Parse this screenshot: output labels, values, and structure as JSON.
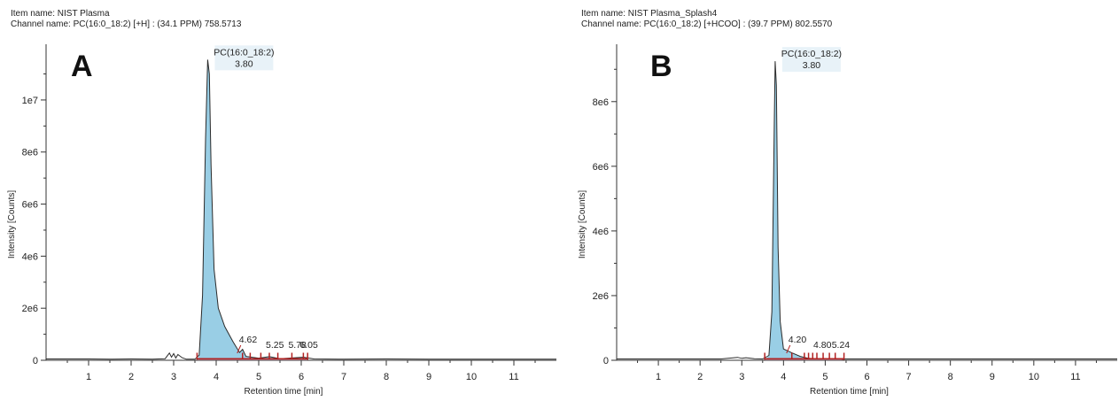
{
  "chart_data": [
    {
      "panel": "A",
      "type": "line",
      "item_name": "Item name: NIST Plasma",
      "channel_name": "Channel name: PC(16:0_18:2) [+H] : (34.1 PPM) 758.5713",
      "xlabel": "Retention time [min]",
      "ylabel": "Intensity [Counts]",
      "xlim": [
        0,
        12
      ],
      "ylim": [
        0,
        11800000
      ],
      "x_ticks": [
        1,
        2,
        3,
        4,
        5,
        6,
        7,
        8,
        9,
        10,
        11
      ],
      "y_ticks": [
        0,
        2000000,
        4000000,
        6000000,
        8000000,
        10000000
      ],
      "y_tick_labels": [
        "0",
        "2e6",
        "4e6",
        "6e6",
        "8e6",
        "1e7"
      ],
      "trace": [
        [
          0.0,
          50000
        ],
        [
          0.5,
          50000
        ],
        [
          1.0,
          50000
        ],
        [
          1.5,
          40000
        ],
        [
          2.0,
          50000
        ],
        [
          2.5,
          45000
        ],
        [
          2.8,
          60000
        ],
        [
          2.9,
          280000
        ],
        [
          2.95,
          120000
        ],
        [
          3.0,
          260000
        ],
        [
          3.05,
          90000
        ],
        [
          3.1,
          220000
        ],
        [
          3.2,
          100000
        ],
        [
          3.3,
          40000
        ],
        [
          3.5,
          40000
        ],
        [
          3.6,
          200000
        ],
        [
          3.68,
          2500000
        ],
        [
          3.75,
          8500000
        ],
        [
          3.8,
          11550000
        ],
        [
          3.84,
          11000000
        ],
        [
          3.88,
          7500000
        ],
        [
          3.95,
          3500000
        ],
        [
          4.05,
          2000000
        ],
        [
          4.2,
          1300000
        ],
        [
          4.4,
          700000
        ],
        [
          4.55,
          300000
        ],
        [
          4.62,
          420000
        ],
        [
          4.7,
          150000
        ],
        [
          5.0,
          80000
        ],
        [
          5.25,
          140000
        ],
        [
          5.5,
          60000
        ],
        [
          5.78,
          90000
        ],
        [
          6.05,
          120000
        ],
        [
          6.3,
          50000
        ],
        [
          7.0,
          40000
        ],
        [
          8.0,
          50000
        ],
        [
          9.0,
          40000
        ],
        [
          10.0,
          40000
        ],
        [
          11.0,
          40000
        ],
        [
          12.0,
          40000
        ]
      ],
      "main_peak": {
        "name": "PC(16:0_18:2)",
        "rt": "3.80"
      },
      "minor_peaks": [
        "4.62",
        "5.25",
        "5.78",
        "6.05"
      ],
      "integration_range": [
        3.55,
        6.15
      ],
      "integration_ticks": [
        3.55,
        4.62,
        4.8,
        5.05,
        5.25,
        5.45,
        5.78,
        6.05,
        6.15
      ],
      "fill_color": "#8ec9e2",
      "marker_color": "#b22222"
    },
    {
      "panel": "B",
      "type": "line",
      "item_name": "Item name: NIST Plasma_Splash4",
      "channel_name": "Channel name: PC(16:0_18:2) [+HCOO] : (39.7 PPM) 802.5570",
      "xlabel": "Retention time [min]",
      "ylabel": "Intensity [Counts]",
      "xlim": [
        0,
        12
      ],
      "ylim": [
        0,
        9500000
      ],
      "x_ticks": [
        1,
        2,
        3,
        4,
        5,
        6,
        7,
        8,
        9,
        10,
        11
      ],
      "y_ticks": [
        0,
        2000000,
        4000000,
        6000000,
        8000000
      ],
      "y_tick_labels": [
        "0",
        "2e6",
        "4e6",
        "6e6",
        "8e6"
      ],
      "trace": [
        [
          0.0,
          40000
        ],
        [
          1.0,
          40000
        ],
        [
          2.0,
          40000
        ],
        [
          2.5,
          40000
        ],
        [
          2.9,
          90000
        ],
        [
          3.0,
          60000
        ],
        [
          3.1,
          80000
        ],
        [
          3.3,
          50000
        ],
        [
          3.5,
          40000
        ],
        [
          3.65,
          150000
        ],
        [
          3.72,
          1500000
        ],
        [
          3.78,
          7500000
        ],
        [
          3.8,
          9250000
        ],
        [
          3.83,
          8500000
        ],
        [
          3.87,
          3500000
        ],
        [
          3.92,
          1200000
        ],
        [
          4.0,
          350000
        ],
        [
          4.2,
          230000
        ],
        [
          4.4,
          120000
        ],
        [
          4.6,
          60000
        ],
        [
          4.8,
          50000
        ],
        [
          5.24,
          40000
        ],
        [
          6.0,
          40000
        ],
        [
          7.0,
          40000
        ],
        [
          8.0,
          40000
        ],
        [
          9.0,
          40000
        ],
        [
          10.0,
          40000
        ],
        [
          11.0,
          40000
        ],
        [
          12.0,
          40000
        ]
      ],
      "main_peak": {
        "name": "PC(16:0_18:2)",
        "rt": "3.80"
      },
      "minor_peaks": [
        "4.20",
        "4.80",
        "5.24"
      ],
      "integration_range": [
        3.55,
        5.45
      ],
      "integration_ticks": [
        3.55,
        4.2,
        4.5,
        4.6,
        4.7,
        4.8,
        4.95,
        5.1,
        5.24,
        5.45
      ],
      "fill_color": "#8ec9e2",
      "marker_color": "#b22222"
    }
  ],
  "panel_letters": [
    "A",
    "B"
  ]
}
